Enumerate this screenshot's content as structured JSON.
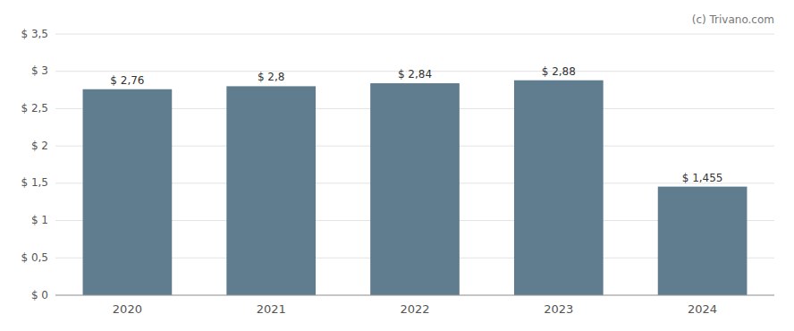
{
  "chart_data": {
    "type": "bar",
    "categories": [
      "2020",
      "2021",
      "2022",
      "2023",
      "2024"
    ],
    "values": [
      2.76,
      2.8,
      2.84,
      2.88,
      1.455
    ],
    "value_labels": [
      "$ 2,76",
      "$ 2,8",
      "$ 2,84",
      "$ 2,88",
      "$ 1,455"
    ],
    "data_labels": true,
    "color": "#5f7d8e",
    "ylim": [
      0,
      3.5
    ],
    "yticks": [
      {
        "value": 0,
        "label": "$ 0"
      },
      {
        "value": 0.5,
        "label": "$ 0,5"
      },
      {
        "value": 1.0,
        "label": "$ 1"
      },
      {
        "value": 1.5,
        "label": "$ 1,5"
      },
      {
        "value": 2.0,
        "label": "$ 2"
      },
      {
        "value": 2.5,
        "label": "$ 2,5"
      },
      {
        "value": 3.0,
        "label": "$ 3"
      },
      {
        "value": 3.5,
        "label": "$ 3,5"
      }
    ],
    "grid": true,
    "annotations": [
      {
        "text": "(c) Trivano.com"
      }
    ]
  }
}
